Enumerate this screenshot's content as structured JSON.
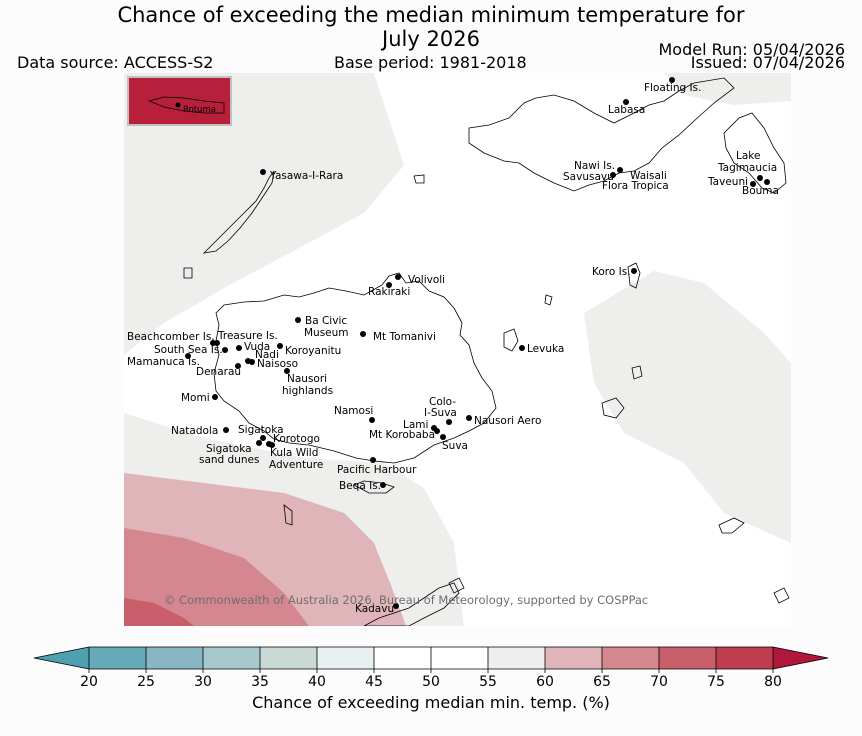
{
  "title": {
    "line1": "Chance of exceeding the median minimum temperature for",
    "line2": "July 2026"
  },
  "header": {
    "data_source": "Data source: ACCESS-S2",
    "base_period": "Base period: 1981-2018",
    "model_run": "Model Run: 05/04/2026",
    "issued": "Issued: 07/04/2026"
  },
  "inset": {
    "label": "Rotuma",
    "color": "#b71f3a"
  },
  "places": [
    {
      "id": "floating",
      "name": "Floating Is."
    },
    {
      "id": "labasa",
      "name": "Labasa"
    },
    {
      "id": "yasawa",
      "name": "Yasawa-I-Rara"
    },
    {
      "id": "nawi",
      "name": "Nawi Is."
    },
    {
      "id": "savusavu",
      "name": "Savusavu"
    },
    {
      "id": "waisali",
      "name": "Waisali"
    },
    {
      "id": "flora",
      "name": "Flora Tropica"
    },
    {
      "id": "lake",
      "name": "Lake"
    },
    {
      "id": "tagimaucia",
      "name": "Tagimaucia"
    },
    {
      "id": "taveuni",
      "name": "Taveuni"
    },
    {
      "id": "bouma",
      "name": "Bouma"
    },
    {
      "id": "koro",
      "name": "Koro Is."
    },
    {
      "id": "volivoli",
      "name": "Volivoli"
    },
    {
      "id": "rakiraki",
      "name": "Rakiraki"
    },
    {
      "id": "bacivic1",
      "name": "Ba Civic"
    },
    {
      "id": "bacivic2",
      "name": "Museum"
    },
    {
      "id": "tomanivi",
      "name": "Mt Tomanivi"
    },
    {
      "id": "beachcomber",
      "name": "Beachcomber Is."
    },
    {
      "id": "treasure",
      "name": "Treasure Is."
    },
    {
      "id": "southsea",
      "name": "South Sea Is."
    },
    {
      "id": "vuda",
      "name": "Vuda"
    },
    {
      "id": "koroyanitu",
      "name": "Koroyanitu"
    },
    {
      "id": "nadi",
      "name": "Nadi"
    },
    {
      "id": "mamanuca",
      "name": "Mamanuca Is."
    },
    {
      "id": "naisoso",
      "name": "Naisoso"
    },
    {
      "id": "denarau",
      "name": "Denarau"
    },
    {
      "id": "nausori_h1",
      "name": "Nausori"
    },
    {
      "id": "nausori_h2",
      "name": "highlands"
    },
    {
      "id": "levuka",
      "name": "Levuka"
    },
    {
      "id": "momi",
      "name": "Momi"
    },
    {
      "id": "namosi",
      "name": "Namosi"
    },
    {
      "id": "colo1",
      "name": "Colo-"
    },
    {
      "id": "colo2",
      "name": "I-Suva"
    },
    {
      "id": "nausori_aero",
      "name": "Nausori Aero"
    },
    {
      "id": "lami",
      "name": "Lami"
    },
    {
      "id": "korobaba",
      "name": "Mt Korobaba"
    },
    {
      "id": "suva",
      "name": "Suva"
    },
    {
      "id": "natadola",
      "name": "Natadola"
    },
    {
      "id": "sigatoka",
      "name": "Sigatoka"
    },
    {
      "id": "korotogo",
      "name": "Korotogo"
    },
    {
      "id": "sig_dunes1",
      "name": "Sigatoka"
    },
    {
      "id": "sig_dunes2",
      "name": "sand dunes"
    },
    {
      "id": "kula1",
      "name": "Kula Wild"
    },
    {
      "id": "kula2",
      "name": "Adventure"
    },
    {
      "id": "pacific",
      "name": "Pacific Harbour"
    },
    {
      "id": "beqa",
      "name": "Beqa Is."
    },
    {
      "id": "kadavu",
      "name": "Kadavu"
    }
  ],
  "copyright": "© Commonwealth of Australia 2026, Bureau of Meteorology, supported by COSPPac",
  "colorbar": {
    "ticks": [
      "20",
      "25",
      "30",
      "35",
      "40",
      "45",
      "50",
      "55",
      "60",
      "65",
      "70",
      "75",
      "80"
    ],
    "under_color": "#4e9fb0",
    "over_color": "#b0173a",
    "colors": [
      "#64aab9",
      "#88b6c2",
      "#a8c8cd",
      "#cad8d6",
      "#e9f0f1",
      "#ffffff",
      "#ffffff",
      "#eeeeec",
      "#e0b5b9",
      "#d4878f",
      "#c95f6a",
      "#be3e4f"
    ],
    "label": "Chance of exceeding median min. temp. (%)"
  }
}
